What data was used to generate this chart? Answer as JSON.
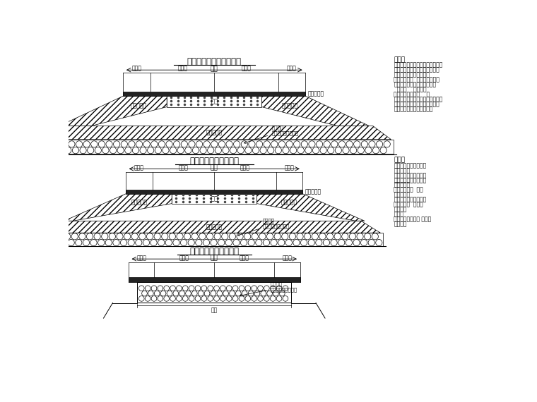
{
  "bg_color": "#ffffff",
  "line_color": "#000000",
  "title1": "软基及淤泥低注填筑地段",
  "title2": "地势较高的填方地段：",
  "title3": "挖方区软基换填地段：",
  "subtitle": "路幅",
  "label_renxingdao": "人行道",
  "label_chexingdao": "车行道",
  "label_jiceng": "基层下片石",
  "label_tian_shi_tu": "填石或填土",
  "label_dian_shi_tu": "垫石或填土",
  "label_dian_shi_tu2": "垫石或地土",
  "label_tian_shi": "填石",
  "label_pian_shi1": "抛填片石\n厚度视现场情况而定",
  "label_pian_shi2": "抛地片石\n厚度视现场情况而定",
  "label_huan_tian": "换填片石\n厚度视现场情况而定",
  "label_wa_kuan": "挖宽",
  "note1_title": "说明：",
  "note1_lines": [
    "、换填地段及深度详见工程量表。",
    "、视现场、填料情况及施工天气",
    "状况等确定填土或填石。",
    "、路面基层下  范围内需填石。",
    "、抛填片石的粒径人不应小于",
    "  几小十    的粒径的",
    "片石含量不得超过    。",
    "、抛填顺序：先从路堤中部开始，",
    "中部和前夹建筑向渐次向两侧展",
    "开，以使淤泥向两侧排出。"
  ],
  "note2_title": "说明：",
  "note2_lines": [
    "、换填地段及深度详见",
    "工程量表。",
    "、视现场、填料情况及",
    "施工天气状况等确定填",
    "土或填石。",
    "、路面基层下  范围",
    "内的填石。",
    "、填土时须在土料在其",
    "最佳含水量  时填筑",
    "和碎压。",
    "说明：",
    "、换填地段及深度 详见工",
    "程量表。"
  ]
}
